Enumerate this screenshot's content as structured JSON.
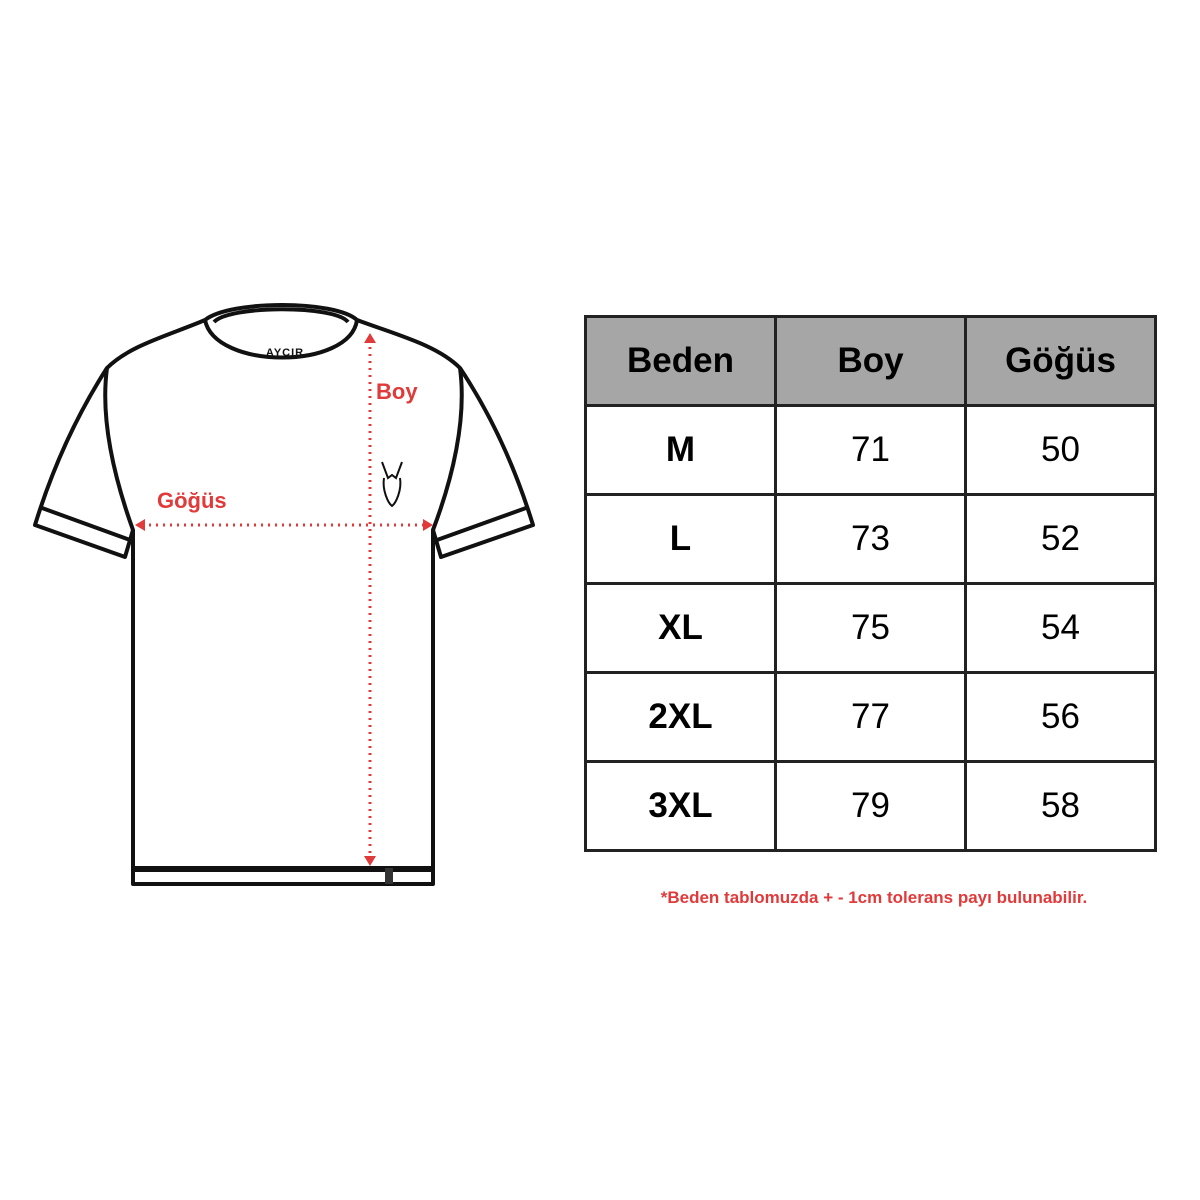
{
  "diagram": {
    "brand": "AYCIR",
    "length_label": "Boy",
    "chest_label": "Göğüs"
  },
  "table": {
    "header": [
      "Beden",
      "Boy",
      "Göğüs"
    ],
    "rows": [
      [
        "M",
        71,
        50
      ],
      [
        "L",
        73,
        52
      ],
      [
        "XL",
        75,
        54
      ],
      [
        "2XL",
        77,
        56
      ],
      [
        "3XL",
        79,
        58
      ]
    ]
  },
  "note": "*Beden tablomuzda + - 1cm tolerans payı bulunabilir."
}
